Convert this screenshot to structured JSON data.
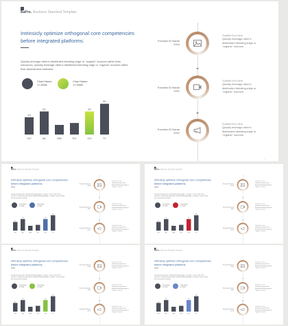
{
  "brand": {
    "name": "BaPro.",
    "tagline": "Business Standard Template"
  },
  "heading": "Intrinsicly optimize orthogonal core competencies before integrated platforms.",
  "description": "Quickly leverage other's distributed bleeding-edge or \"organic\" sources rather than resources. Quickly leverage other's distributed bleeding-edge or \"organic\" sources rather than assessment networks.",
  "legend": [
    {
      "name": "Chart Name",
      "value": "17,000$"
    },
    {
      "name": "Chart Name",
      "value": "17,000$"
    }
  ],
  "functions": [
    {
      "label": "Function ID Name",
      "year": "2010",
      "icon": "image-icon",
      "subtitle": "SubtitleText Here",
      "text": "Quickly leverage other's distributed bleeding-edge or \"organic\" sources"
    },
    {
      "label": "Function ID Name",
      "year": "2011",
      "icon": "video-camera-icon",
      "subtitle": "SubtitleText Here",
      "text": "Quickly leverage other's distributed bleeding-edge or \"organic\" sources"
    },
    {
      "label": "Function ID Name",
      "year": "2012",
      "icon": "megaphone-icon",
      "subtitle": "SubtitleText Here",
      "text": "Quickly leverage other's distributed bleeding-edge or \"organic\" sources"
    }
  ],
  "colors": {
    "bar": "#4a4e59",
    "ring": "#b9896a",
    "heading": "#3e6aa0"
  },
  "chart_data": {
    "type": "bar",
    "categories": [
      "HO",
      "WL",
      "WB",
      "PO",
      "GO",
      "TY"
    ],
    "values": [
      45,
      60,
      25,
      30,
      60,
      80
    ],
    "data_labels": [
      "45",
      "60",
      "",
      "",
      "60",
      "80"
    ],
    "ylim": [
      0,
      100
    ]
  },
  "slides": [
    {
      "id": "main",
      "highlight_index": 4,
      "highlight_color": "#86c241",
      "legend_colors": [
        "#4a4e59",
        "#86c241"
      ]
    },
    {
      "id": "t1",
      "highlight_index": 4,
      "highlight_color": "#4f6fa8",
      "legend_colors": [
        "#4a4e59",
        "#4f6fa8"
      ]
    },
    {
      "id": "t2",
      "highlight_index": 4,
      "highlight_color": "#c4212f",
      "legend_colors": [
        "#4a4e59",
        "#c4212f"
      ]
    },
    {
      "id": "t3",
      "highlight_index": 4,
      "highlight_color": "#86c241",
      "legend_colors": [
        "#4a4e59",
        "#86c241"
      ]
    },
    {
      "id": "t4",
      "highlight_index": 4,
      "highlight_color": "#6b87c9",
      "legend_colors": [
        "#4a4e59",
        "#6b87c9"
      ]
    }
  ],
  "page_number": "1"
}
